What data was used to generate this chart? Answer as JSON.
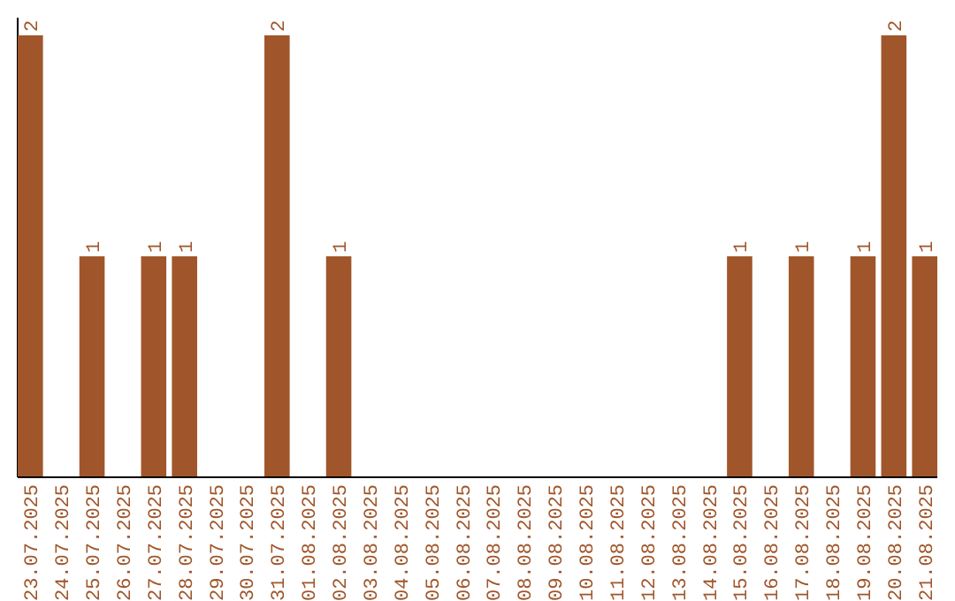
{
  "chart_data": {
    "type": "bar",
    "categories": [
      "23.07.2025",
      "24.07.2025",
      "25.07.2025",
      "26.07.2025",
      "27.07.2025",
      "28.07.2025",
      "29.07.2025",
      "30.07.2025",
      "31.07.2025",
      "01.08.2025",
      "02.08.2025",
      "03.08.2025",
      "04.08.2025",
      "05.08.2025",
      "06.08.2025",
      "07.08.2025",
      "08.08.2025",
      "09.08.2025",
      "10.08.2025",
      "11.08.2025",
      "12.08.2025",
      "13.08.2025",
      "14.08.2025",
      "15.08.2025",
      "16.08.2025",
      "17.08.2025",
      "18.08.2025",
      "19.08.2025",
      "20.08.2025",
      "21.08.2025"
    ],
    "values": [
      2,
      0,
      1,
      0,
      1,
      1,
      0,
      0,
      2,
      0,
      1,
      0,
      0,
      0,
      0,
      0,
      0,
      0,
      0,
      0,
      0,
      0,
      0,
      1,
      0,
      1,
      0,
      1,
      2,
      1
    ],
    "value_labels": [
      "2",
      null,
      "1",
      null,
      "1",
      "1",
      null,
      null,
      "2",
      null,
      "1",
      null,
      null,
      null,
      null,
      null,
      null,
      null,
      null,
      null,
      null,
      null,
      null,
      "1",
      null,
      "1",
      null,
      "1",
      "2",
      "1"
    ],
    "color": "#a0562a"
  }
}
